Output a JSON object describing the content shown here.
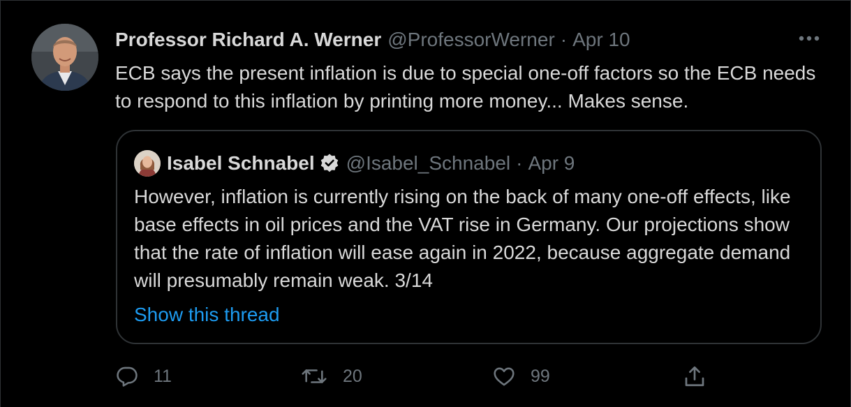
{
  "tweet": {
    "author_name": "Professor Richard A. Werner",
    "author_handle": "@ProfessorWerner",
    "separator": "·",
    "date": "Apr 10",
    "text": "ECB says the present inflation is due to special one-off factors so the ECB needs to respond to this inflation by printing more money... Makes sense."
  },
  "quote": {
    "author_name": "Isabel Schnabel",
    "author_handle": "@Isabel_Schnabel",
    "separator": "·",
    "date": "Apr 9",
    "text": "However, inflation is currently rising on the back of many one-off effects, like base effects in oil prices and the VAT rise in Germany. Our projections show that the rate of inflation will ease again in 2022, because aggregate demand will presumably remain weak. 3/14",
    "show_thread": "Show this thread"
  },
  "actions": {
    "replies": "11",
    "retweets": "20",
    "likes": "99"
  },
  "icons": {
    "more": "more-horizontal-icon",
    "reply": "reply-bubble-icon",
    "retweet": "retweet-icon",
    "like": "heart-icon",
    "share": "share-upload-icon",
    "verified": "verified-badge-icon"
  },
  "colors": {
    "background": "#000000",
    "text": "#d9d9d9",
    "secondary": "#6e767d",
    "link": "#1d9bf0",
    "border": "#2f3336"
  }
}
